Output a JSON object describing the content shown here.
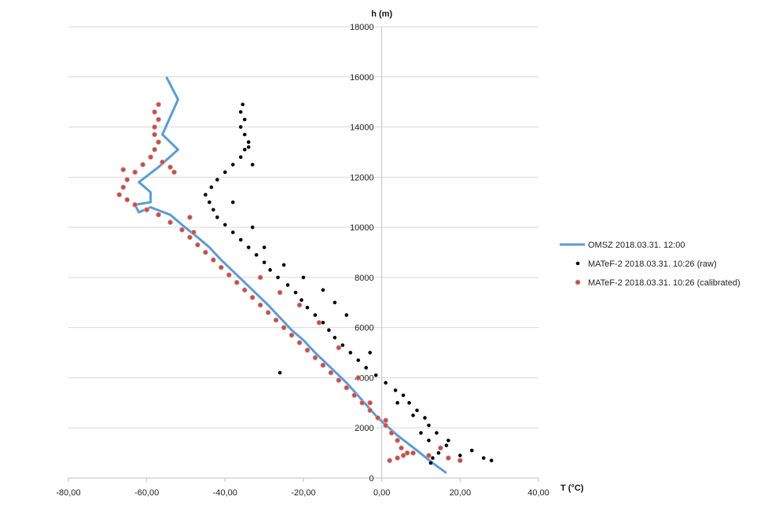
{
  "chart_data": {
    "type": "scatter",
    "xlabel": "T (°C)",
    "ylabel": "h (m)",
    "xlim": [
      -80,
      40
    ],
    "ylim": [
      0,
      18000
    ],
    "x_ticks": [
      "-80,00",
      "-60,00",
      "-40,00",
      "-20,00",
      "0,00",
      "20,00",
      "40,00"
    ],
    "y_ticks": [
      "0",
      "2000",
      "4000",
      "6000",
      "8000",
      "10000",
      "12000",
      "14000",
      "16000",
      "18000"
    ],
    "grid": "horizontal",
    "legend_position": "right",
    "colors": {
      "line": "#5b9bd5",
      "raw": "#000000",
      "calibrated": "#c0504d",
      "grid": "#d9d9d9",
      "axis": "#bfbfbf"
    },
    "series": [
      {
        "name": "OMSZ 2018.03.31. 12:00",
        "kind": "line",
        "points": [
          [
            16.5,
            200
          ],
          [
            13,
            600
          ],
          [
            9,
            1100
          ],
          [
            4,
            1700
          ],
          [
            -1,
            2400
          ],
          [
            -5,
            3100
          ],
          [
            -9,
            3800
          ],
          [
            -13,
            4400
          ],
          [
            -17,
            5000
          ],
          [
            -20,
            5500
          ],
          [
            -23,
            5900
          ],
          [
            -26,
            6400
          ],
          [
            -29,
            6900
          ],
          [
            -33,
            7500
          ],
          [
            -37,
            8100
          ],
          [
            -41,
            8700
          ],
          [
            -44,
            9200
          ],
          [
            -47,
            9600
          ],
          [
            -51,
            10100
          ],
          [
            -54,
            10500
          ],
          [
            -59,
            10800
          ],
          [
            -62,
            10600
          ],
          [
            -63,
            10900
          ],
          [
            -59,
            11000
          ],
          [
            -59,
            11400
          ],
          [
            -62,
            11800
          ],
          [
            -57,
            12400
          ],
          [
            -52,
            13100
          ],
          [
            -56,
            13700
          ],
          [
            -52,
            15100
          ],
          [
            -55,
            16000
          ]
        ]
      },
      {
        "name": "MATeF-2 2018.03.31. 10:26 (raw)",
        "kind": "scatter",
        "points": [
          [
            12.5,
            600
          ],
          [
            13,
            800
          ],
          [
            14.5,
            1000
          ],
          [
            16.5,
            1300
          ],
          [
            12,
            1500
          ],
          [
            14,
            1800
          ],
          [
            12,
            2100
          ],
          [
            11,
            2400
          ],
          [
            9,
            2700
          ],
          [
            7,
            3000
          ],
          [
            5.5,
            3300
          ],
          [
            3.5,
            3500
          ],
          [
            1,
            3800
          ],
          [
            -1.5,
            4100
          ],
          [
            -4,
            4400
          ],
          [
            -6,
            4700
          ],
          [
            -8,
            5000
          ],
          [
            -10,
            5300
          ],
          [
            -12,
            5600
          ],
          [
            -13.5,
            5900
          ],
          [
            -15,
            6200
          ],
          [
            -17,
            6500
          ],
          [
            -19,
            6800
          ],
          [
            -20.5,
            7100
          ],
          [
            -22,
            7400
          ],
          [
            -24,
            7700
          ],
          [
            -26.5,
            8000
          ],
          [
            -28.5,
            8300
          ],
          [
            -30,
            8600
          ],
          [
            -32,
            8900
          ],
          [
            -34,
            9200
          ],
          [
            -36,
            9500
          ],
          [
            -38,
            9800
          ],
          [
            -40,
            10100
          ],
          [
            -42,
            10400
          ],
          [
            -43,
            10700
          ],
          [
            -44,
            11000
          ],
          [
            -45,
            11300
          ],
          [
            -43.5,
            11600
          ],
          [
            -42,
            11900
          ],
          [
            -40,
            12200
          ],
          [
            -38,
            12500
          ],
          [
            -36,
            12800
          ],
          [
            -35,
            13100
          ],
          [
            -34,
            13400
          ],
          [
            -35,
            13700
          ],
          [
            -36,
            14000
          ],
          [
            -35,
            14300
          ],
          [
            -36,
            14600
          ],
          [
            -35.5,
            14900
          ],
          [
            -12,
            7000
          ],
          [
            -15,
            7500
          ],
          [
            -20,
            8000
          ],
          [
            -25,
            8500
          ],
          [
            -30,
            9200
          ],
          [
            -33,
            10000
          ],
          [
            -38,
            11000
          ],
          [
            -33,
            12500
          ],
          [
            -34,
            13200
          ],
          [
            -26,
            4200
          ],
          [
            -9,
            6500
          ],
          [
            -3,
            5000
          ],
          [
            4,
            3000
          ],
          [
            8,
            2500
          ],
          [
            20,
            900
          ],
          [
            23,
            1100
          ],
          [
            26,
            800
          ],
          [
            28,
            700
          ],
          [
            17,
            1500
          ],
          [
            10,
            1800
          ]
        ]
      },
      {
        "name": "MATeF-2 2018.03.31. 10:26 (calibrated)",
        "kind": "scatter",
        "points": [
          [
            2,
            700
          ],
          [
            4,
            800
          ],
          [
            5.5,
            900
          ],
          [
            6.5,
            1000
          ],
          [
            5,
            1200
          ],
          [
            4,
            1500
          ],
          [
            2.5,
            1800
          ],
          [
            1,
            2100
          ],
          [
            -1,
            2400
          ],
          [
            -3,
            2700
          ],
          [
            -5,
            3000
          ],
          [
            -7,
            3300
          ],
          [
            -9,
            3600
          ],
          [
            -11,
            3900
          ],
          [
            -13,
            4200
          ],
          [
            -15,
            4500
          ],
          [
            -17,
            4800
          ],
          [
            -19,
            5100
          ],
          [
            -21,
            5400
          ],
          [
            -23,
            5700
          ],
          [
            -25,
            6000
          ],
          [
            -27,
            6300
          ],
          [
            -29,
            6600
          ],
          [
            -31,
            6900
          ],
          [
            -33,
            7200
          ],
          [
            -35,
            7500
          ],
          [
            -37,
            7800
          ],
          [
            -39,
            8100
          ],
          [
            -41,
            8400
          ],
          [
            -43,
            8700
          ],
          [
            -45,
            9000
          ],
          [
            -47,
            9300
          ],
          [
            -49,
            9600
          ],
          [
            -51,
            9900
          ],
          [
            -54,
            10200
          ],
          [
            -57,
            10500
          ],
          [
            -60,
            10700
          ],
          [
            -63,
            10900
          ],
          [
            -65,
            11100
          ],
          [
            -67,
            11300
          ],
          [
            -66,
            11600
          ],
          [
            -65,
            11900
          ],
          [
            -63,
            12200
          ],
          [
            -61,
            12500
          ],
          [
            -59,
            12800
          ],
          [
            -58,
            13100
          ],
          [
            -57,
            13400
          ],
          [
            -58,
            13700
          ],
          [
            -58,
            14000
          ],
          [
            -57,
            14300
          ],
          [
            -58,
            14600
          ],
          [
            -57,
            14900
          ],
          [
            -66,
            12300
          ],
          [
            -56,
            12600
          ],
          [
            -54,
            12400
          ],
          [
            -53,
            12200
          ],
          [
            -31,
            8000
          ],
          [
            -26,
            7400
          ],
          [
            -21,
            6900
          ],
          [
            -16,
            6200
          ],
          [
            -11,
            5200
          ],
          [
            -6,
            4000
          ],
          [
            -3,
            3000
          ],
          [
            1,
            2300
          ],
          [
            8,
            1000
          ],
          [
            12,
            900
          ],
          [
            15,
            1200
          ],
          [
            17,
            800
          ],
          [
            20,
            700
          ],
          [
            -49,
            10400
          ],
          [
            -48,
            9800
          ]
        ]
      }
    ]
  }
}
